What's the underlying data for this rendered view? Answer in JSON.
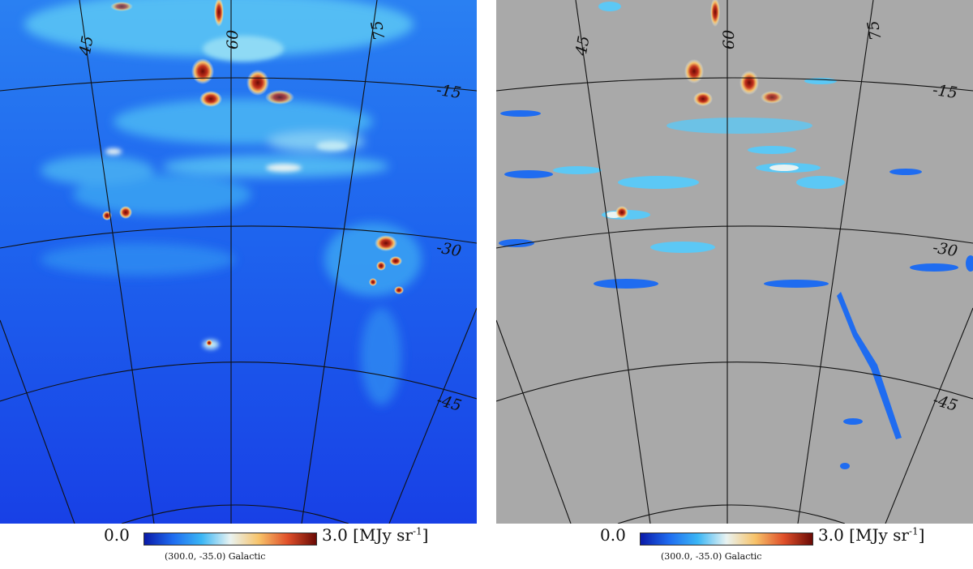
{
  "panels": [
    {
      "id": "left",
      "longitude_labels": [
        "45",
        "60",
        "75"
      ],
      "latitude_labels": [
        "-15",
        "-30",
        "-45"
      ],
      "colorbar": {
        "min_label": "0.0",
        "max_label": "3.0",
        "unit": "[MJy sr",
        "unit_exp": "-1",
        "unit_close": "]"
      },
      "projection_label": "(300.0, -35.0) Galactic",
      "background_color": "#1e5ef0",
      "masked_color": null
    },
    {
      "id": "right",
      "longitude_labels": [
        "45",
        "60",
        "75"
      ],
      "latitude_labels": [
        "-15",
        "-30",
        "-45"
      ],
      "colorbar": {
        "min_label": "0.0",
        "max_label": "3.0",
        "unit": "[MJy sr",
        "unit_exp": "-1",
        "unit_close": "]"
      },
      "projection_label": "(300.0, -35.0) Galactic",
      "background_color": "#a9a9a9",
      "masked_color": "#a9a9a9"
    }
  ],
  "colormap": [
    "#0a1aa8",
    "#1f6cf0",
    "#3bb6f5",
    "#e9f3f2",
    "#f7c36a",
    "#e0502a",
    "#6b0a05"
  ]
}
